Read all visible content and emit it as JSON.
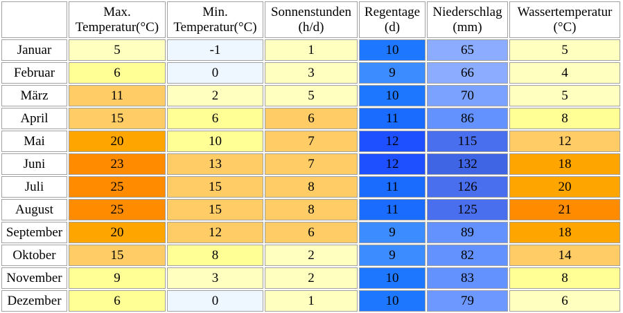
{
  "headers": [
    {
      "line1": "Max.",
      "line2": "Temperatur(°C)"
    },
    {
      "line1": "Min.",
      "line2": "Temperatur(°C)"
    },
    {
      "line1": "Sonnenstunden",
      "line2": "(h/d)"
    },
    {
      "line1": "Regentage",
      "line2": "(d)"
    },
    {
      "line1": "Niederschlag",
      "line2": "(mm)"
    },
    {
      "line1": "Wassertemperatur",
      "line2": "(°C)"
    }
  ],
  "rows": [
    {
      "month": "Januar",
      "values": [
        "5",
        "-1",
        "1",
        "10",
        "65",
        "5"
      ],
      "colors": [
        "#ffffc0",
        "#eef6ff",
        "#ffffc0",
        "#1e78ff",
        "#8cacff",
        "#ffffc0"
      ]
    },
    {
      "month": "Februar",
      "values": [
        "6",
        "0",
        "3",
        "9",
        "66",
        "4"
      ],
      "colors": [
        "#ffff96",
        "#eef6ff",
        "#ffffc0",
        "#3d8cff",
        "#8cacff",
        "#ffffc0"
      ]
    },
    {
      "month": "März",
      "values": [
        "11",
        "2",
        "5",
        "10",
        "70",
        "5"
      ],
      "colors": [
        "#ffcc66",
        "#ffffc0",
        "#ffffc0",
        "#1e78ff",
        "#7ca2ff",
        "#ffffc0"
      ]
    },
    {
      "month": "April",
      "values": [
        "15",
        "6",
        "6",
        "11",
        "86",
        "8"
      ],
      "colors": [
        "#ffcc66",
        "#ffff96",
        "#ffcc66",
        "#1a6cff",
        "#6392ff",
        "#ffff96"
      ]
    },
    {
      "month": "Mai",
      "values": [
        "20",
        "10",
        "7",
        "12",
        "115",
        "12"
      ],
      "colors": [
        "#ffa500",
        "#ffff96",
        "#ffcc66",
        "#1e50ff",
        "#4a6fee",
        "#ffcc66"
      ]
    },
    {
      "month": "Juni",
      "values": [
        "23",
        "13",
        "7",
        "12",
        "132",
        "18"
      ],
      "colors": [
        "#ff8c00",
        "#ffcc66",
        "#ffcc66",
        "#1e50ff",
        "#3f64e4",
        "#ffa500"
      ]
    },
    {
      "month": "Juli",
      "values": [
        "25",
        "15",
        "8",
        "11",
        "126",
        "20"
      ],
      "colors": [
        "#ff8c00",
        "#ffcc66",
        "#ffcc66",
        "#1a6cff",
        "#4a6fee",
        "#ffa500"
      ]
    },
    {
      "month": "August",
      "values": [
        "25",
        "15",
        "8",
        "11",
        "125",
        "21"
      ],
      "colors": [
        "#ff8c00",
        "#ffcc66",
        "#ffcc66",
        "#1a6cff",
        "#4a6fee",
        "#ff8c00"
      ]
    },
    {
      "month": "September",
      "values": [
        "20",
        "12",
        "6",
        "9",
        "89",
        "18"
      ],
      "colors": [
        "#ffa500",
        "#ffcc66",
        "#ffcc66",
        "#3d8cff",
        "#6392ff",
        "#ffa500"
      ]
    },
    {
      "month": "Oktober",
      "values": [
        "15",
        "8",
        "2",
        "9",
        "82",
        "14"
      ],
      "colors": [
        "#ffcc66",
        "#ffff96",
        "#ffffc0",
        "#3d8cff",
        "#6392ff",
        "#ffcc66"
      ]
    },
    {
      "month": "November",
      "values": [
        "9",
        "3",
        "2",
        "10",
        "83",
        "8"
      ],
      "colors": [
        "#ffff96",
        "#ffffc0",
        "#ffffc0",
        "#1e78ff",
        "#6392ff",
        "#ffff96"
      ]
    },
    {
      "month": "Dezember",
      "values": [
        "6",
        "0",
        "1",
        "10",
        "79",
        "6"
      ],
      "colors": [
        "#ffff96",
        "#eef6ff",
        "#ffffc0",
        "#1e78ff",
        "#6d98ff",
        "#ffffc0"
      ]
    }
  ]
}
